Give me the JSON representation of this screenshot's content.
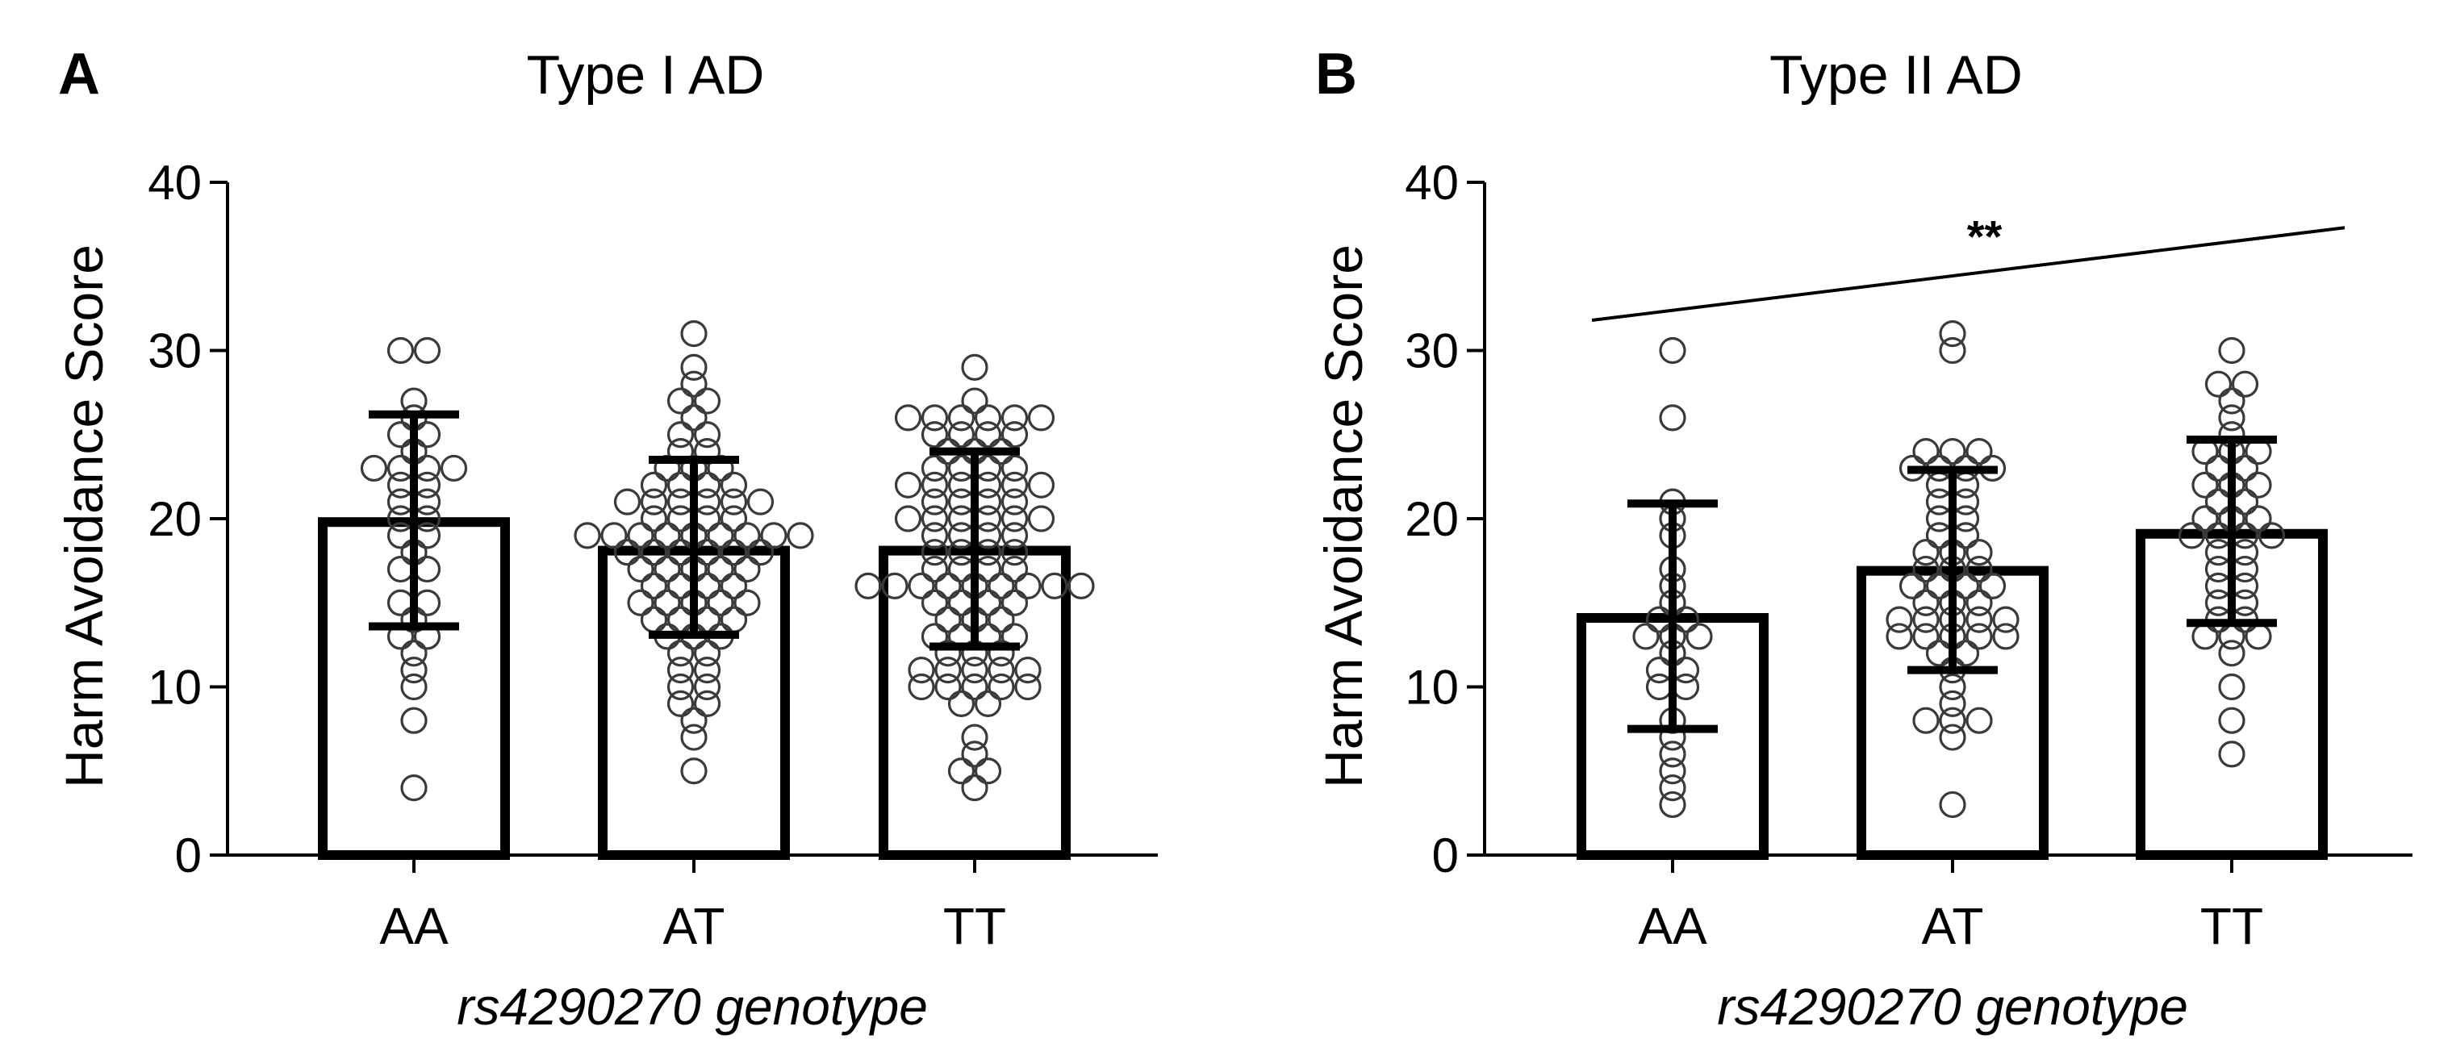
{
  "chart_data": [
    {
      "type": "bar",
      "panel_letter": "A",
      "title": "Type I AD",
      "xlabel": "rs4290270 genotype",
      "ylabel": "Harm Avoidance Score",
      "ylim": [
        0,
        40
      ],
      "yticks": [
        0,
        10,
        20,
        30,
        40
      ],
      "categories": [
        "AA",
        "AT",
        "TT"
      ],
      "means": [
        19.8,
        18.1,
        18.1
      ],
      "sd_lower": [
        13.6,
        13.1,
        12.4
      ],
      "sd_upper": [
        26.2,
        23.5,
        24.0
      ],
      "points": [
        [
          30,
          30,
          27,
          26,
          25,
          25,
          24,
          23,
          23,
          23,
          23,
          22,
          22,
          21,
          21,
          20,
          20,
          19,
          19,
          18,
          17,
          17,
          15,
          15,
          14,
          13,
          13,
          12,
          11,
          10,
          8,
          4
        ],
        [
          31,
          29,
          28,
          27,
          27,
          26,
          25,
          25,
          24,
          24,
          23,
          23,
          23,
          22,
          22,
          22,
          22,
          21,
          21,
          21,
          21,
          21,
          21,
          20,
          20,
          20,
          20,
          19,
          19,
          19,
          19,
          19,
          19,
          19,
          19,
          19,
          18,
          18,
          18,
          18,
          18,
          18,
          17,
          17,
          17,
          17,
          17,
          16,
          16,
          16,
          16,
          15,
          15,
          15,
          15,
          15,
          14,
          14,
          14,
          14,
          13,
          13,
          13,
          12,
          12,
          11,
          11,
          10,
          10,
          9,
          9,
          8,
          7,
          5
        ],
        [
          29,
          27,
          26,
          26,
          26,
          26,
          26,
          26,
          25,
          25,
          25,
          25,
          24,
          24,
          24,
          23,
          23,
          23,
          23,
          22,
          22,
          22,
          22,
          22,
          22,
          21,
          21,
          21,
          21,
          20,
          20,
          20,
          20,
          20,
          20,
          19,
          19,
          19,
          19,
          18,
          18,
          18,
          18,
          17,
          17,
          17,
          17,
          16,
          16,
          16,
          16,
          16,
          16,
          16,
          16,
          16,
          15,
          15,
          15,
          15,
          14,
          14,
          14,
          13,
          13,
          13,
          13,
          12,
          12,
          12,
          11,
          11,
          11,
          11,
          11,
          10,
          10,
          10,
          10,
          10,
          9,
          9,
          7,
          6,
          5,
          5,
          4
        ]
      ],
      "annotations": []
    },
    {
      "type": "bar",
      "panel_letter": "B",
      "title": "Type II AD",
      "xlabel": "rs4290270 genotype",
      "ylabel": "Harm Avoidance Score",
      "ylim": [
        0,
        40
      ],
      "yticks": [
        0,
        10,
        20,
        30,
        40
      ],
      "categories": [
        "AA",
        "AT",
        "TT"
      ],
      "means": [
        14.1,
        16.9,
        19.1
      ],
      "sd_lower": [
        7.5,
        11.0,
        13.8
      ],
      "sd_upper": [
        20.9,
        22.9,
        24.7
      ],
      "points": [
        [
          30,
          26,
          21,
          20,
          19,
          17,
          16,
          15,
          14,
          14,
          13,
          13,
          13,
          12,
          11,
          11,
          10,
          10,
          8,
          7,
          6,
          5,
          4,
          3
        ],
        [
          31,
          30,
          24,
          24,
          24,
          23,
          23,
          23,
          23,
          22,
          22,
          21,
          21,
          20,
          20,
          19,
          19,
          18,
          18,
          18,
          17,
          17,
          17,
          16,
          16,
          16,
          16,
          15,
          15,
          15,
          14,
          14,
          14,
          14,
          14,
          13,
          13,
          13,
          13,
          13,
          12,
          12,
          11,
          10,
          9,
          8,
          8,
          8,
          7,
          3
        ],
        [
          30,
          28,
          28,
          27,
          26,
          25,
          24,
          24,
          24,
          23,
          23,
          22,
          22,
          22,
          21,
          21,
          20,
          20,
          20,
          19,
          19,
          19,
          19,
          18,
          18,
          17,
          17,
          16,
          16,
          15,
          15,
          14,
          14,
          13,
          13,
          13,
          12,
          10,
          8,
          6
        ]
      ],
      "annotations": [
        {
          "text": "**",
          "type": "trend-line",
          "from_value": 31.8,
          "to_value": 37.3
        }
      ]
    }
  ]
}
